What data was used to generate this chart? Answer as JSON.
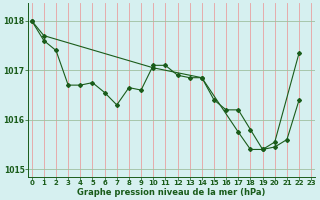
{
  "xlabel": "Graphe pression niveau de la mer (hPa)",
  "background_color": "#d6f0f0",
  "vgrid_color": "#e8a0a0",
  "hgrid_color": "#a0c0a0",
  "line_color": "#1a5c1a",
  "line1_x": [
    0,
    1,
    2,
    3,
    4,
    5,
    6,
    7,
    8,
    9,
    10,
    11,
    12,
    13,
    14,
    15,
    16,
    17,
    18,
    19,
    20,
    21,
    22
  ],
  "line1_y": [
    1018.0,
    1017.6,
    1017.4,
    1016.7,
    1016.7,
    1016.75,
    1016.55,
    1016.3,
    1016.65,
    1016.6,
    1017.1,
    1017.1,
    1016.9,
    1016.85,
    1016.85,
    1016.4,
    1016.2,
    1016.2,
    1015.8,
    1015.4,
    1015.45,
    1015.6,
    1016.4
  ],
  "line2_x": [
    0,
    1,
    10,
    14,
    17,
    18,
    19,
    20,
    22
  ],
  "line2_y": [
    1018.0,
    1017.7,
    1017.05,
    1016.85,
    1015.75,
    1015.4,
    1015.4,
    1015.55,
    1017.35
  ],
  "ylim": [
    1014.85,
    1018.35
  ],
  "yticks": [
    1015,
    1016,
    1017,
    1018
  ],
  "xticks": [
    0,
    1,
    2,
    3,
    4,
    5,
    6,
    7,
    8,
    9,
    10,
    11,
    12,
    13,
    14,
    15,
    16,
    17,
    18,
    19,
    20,
    21,
    22,
    23
  ],
  "xlim": [
    -0.3,
    23.3
  ]
}
